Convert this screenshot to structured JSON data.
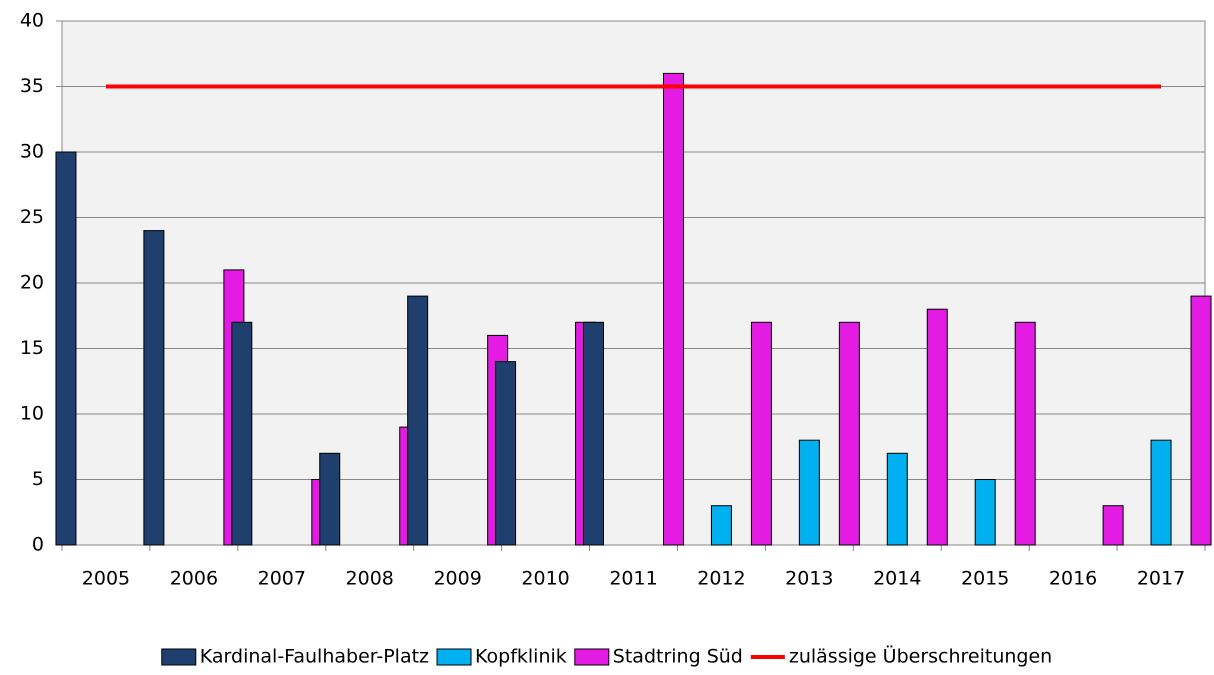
{
  "chart_data": {
    "type": "bar",
    "categories": [
      "2005",
      "2006",
      "2007",
      "2008",
      "2009",
      "2010",
      "2011",
      "2012",
      "2013",
      "2014",
      "2015",
      "2016",
      "2017"
    ],
    "series": [
      {
        "name": "Kardinal-Faulhaber-Platz",
        "color": "#1f3f6f",
        "values": [
          30,
          24,
          17,
          7,
          19,
          14,
          17,
          null,
          null,
          null,
          null,
          null,
          null
        ]
      },
      {
        "name": "Kopfklinik",
        "color": "#00b0f0",
        "values": [
          null,
          null,
          null,
          null,
          null,
          null,
          null,
          3,
          8,
          7,
          5,
          null,
          8
        ]
      },
      {
        "name": "Stadtring Süd",
        "color": "#e31be3",
        "values": [
          null,
          21,
          5,
          9,
          16,
          17,
          36,
          17,
          17,
          18,
          17,
          3,
          19
        ]
      },
      {
        "name": "zulässige Überschreitungen",
        "color": "#ff0000",
        "type": "line",
        "values": [
          35,
          35,
          35,
          35,
          35,
          35,
          35,
          35,
          35,
          35,
          35,
          35,
          35
        ]
      }
    ],
    "ylim": [
      0,
      40
    ],
    "yticks": [
      0,
      5,
      10,
      15,
      20,
      25,
      30,
      35,
      40
    ],
    "grid": true,
    "legend": "bottom"
  }
}
